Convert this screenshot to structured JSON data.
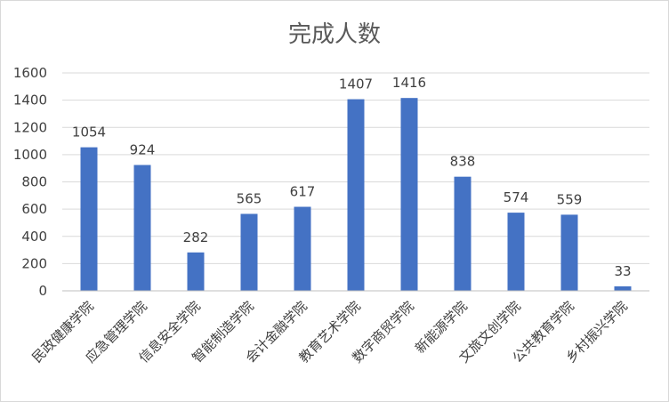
{
  "chart_data": {
    "type": "bar",
    "title": "完成人数",
    "xlabel": "",
    "ylabel": "",
    "ylim": [
      0,
      1600
    ],
    "ytick_step": 200,
    "yticks": [
      "0",
      "200",
      "400",
      "600",
      "800",
      "1000",
      "1200",
      "1400",
      "1600"
    ],
    "grid": true,
    "legend": "none",
    "bar_color": "#4472c4",
    "categories": [
      "民政健康学院",
      "应急管理学院",
      "信息安全学院",
      "智能制造学院",
      "会计金融学院",
      "教育艺术学院",
      "数字商贸学院",
      "新能源学院",
      "文旅文创学院",
      "公共教育学院",
      "乡村振兴学院"
    ],
    "values": [
      1054,
      924,
      282,
      565,
      617,
      1407,
      1416,
      838,
      574,
      559,
      33
    ],
    "data_labels": [
      "1054",
      "924",
      "282",
      "565",
      "617",
      "1407",
      "1416",
      "838",
      "574",
      "559",
      "33"
    ]
  }
}
